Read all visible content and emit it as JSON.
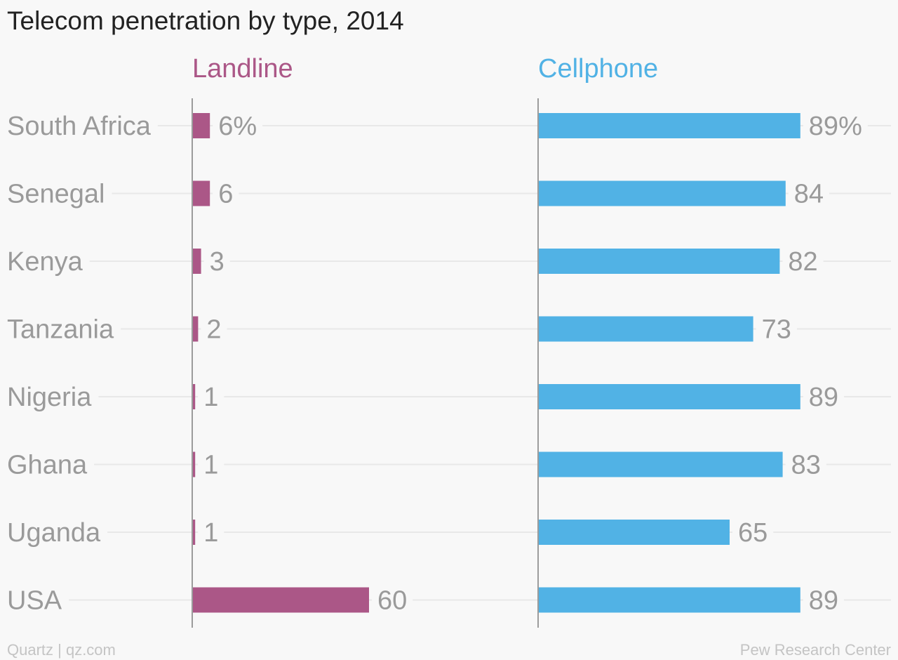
{
  "title": "Telecom penetration by type, 2014",
  "footer": {
    "left": "Quartz | qz.com",
    "right": "Pew Research Center"
  },
  "colors": {
    "landline": "#ab5787",
    "cellphone": "#51b2e5"
  },
  "chart_data": {
    "type": "bar",
    "orientation": "horizontal",
    "title": "Telecom penetration by type, 2014",
    "categories": [
      "South Africa",
      "Senegal",
      "Kenya",
      "Tanzania",
      "Nigeria",
      "Ghana",
      "Uganda",
      "USA"
    ],
    "series": [
      {
        "name": "Landline",
        "color": "#ab5787",
        "values": [
          6,
          6,
          3,
          2,
          1,
          1,
          1,
          60
        ],
        "value_labels": [
          "6%",
          "6",
          "3",
          "2",
          "1",
          "1",
          "1",
          "60"
        ]
      },
      {
        "name": "Cellphone",
        "color": "#51b2e5",
        "values": [
          89,
          84,
          82,
          73,
          89,
          83,
          65,
          89
        ],
        "value_labels": [
          "89%",
          "84",
          "82",
          "73",
          "89",
          "83",
          "65",
          "89"
        ]
      }
    ],
    "xlim": [
      0,
      100
    ],
    "grid": true,
    "legend": "panel titles"
  }
}
